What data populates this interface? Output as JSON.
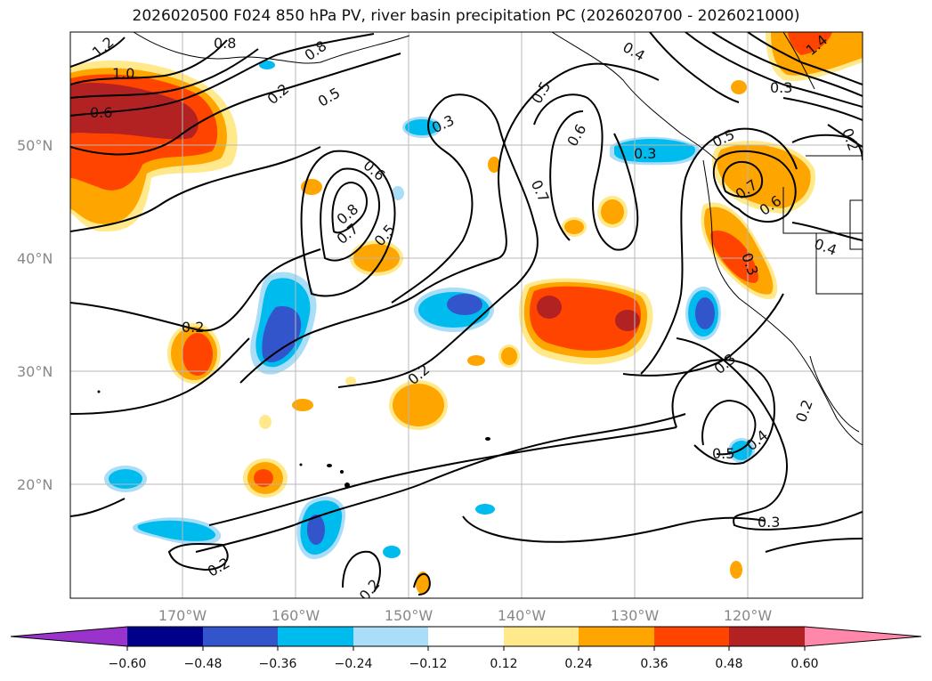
{
  "title": "2026020500 F024 850 hPa PV, river basin precipitation PC (2026020700 - 2026021000)",
  "axes": {
    "lat_labels": [
      "50°N",
      "40°N",
      "30°N",
      "20°N"
    ],
    "lon_labels": [
      "170°W",
      "160°W",
      "150°W",
      "140°W",
      "130°W",
      "120°W"
    ]
  },
  "colorbar": {
    "ticks": [
      "−0.60",
      "−0.48",
      "−0.36",
      "−0.24",
      "−0.12",
      "0.12",
      "0.24",
      "0.36",
      "0.48",
      "0.60"
    ],
    "colors": [
      "#9933cc",
      "#000088",
      "#3355cc",
      "#00bbee",
      "#aaddf8",
      "#ffffff",
      "#ffe98a",
      "#ffa500",
      "#ff4400",
      "#b22222",
      "#ff88aa"
    ]
  },
  "contour_labels": [
    "1.2",
    "0.8",
    "0.8",
    "1.0",
    "0.6",
    "0.5",
    "0.3",
    "0.6",
    "0.8",
    "0.7",
    "0.5",
    "0.5",
    "0.6",
    "0.7",
    "0.4",
    "0.3",
    "0.5",
    "0.7",
    "0.6",
    "0.3",
    "0.4",
    "0.2",
    "1.4",
    "0.3",
    "0.2",
    "0.2",
    "0.3",
    "0.4",
    "0.5",
    "0.2",
    "0.2",
    "0.2",
    "0.3",
    "0.2"
  ]
}
